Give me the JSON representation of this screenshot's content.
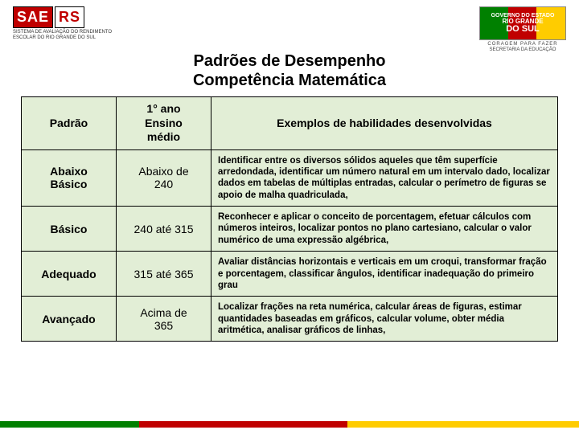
{
  "header": {
    "logo_prefix": "SAE",
    "logo_suffix": "RS",
    "logo_subtitle": "SISTEMA DE AVALIAÇÃO DO RENDIMENTO ESCOLAR DO RIO GRANDE DO SUL",
    "gov_line1": "GOVERNO DO ESTADO",
    "gov_line2": "RIO GRANDE",
    "gov_line3": "DO SUL",
    "gov_motto": "CORAGEM PARA FAZER",
    "gov_dept": "SECRETARIA DA EDUCAÇÃO"
  },
  "title": {
    "line1": "Padrões de Desempenho",
    "line2": "Competência Matemática"
  },
  "table": {
    "columns": {
      "padrao": "Padrão",
      "ano_l1": "1° ano",
      "ano_l2": "Ensino",
      "ano_l3": "médio",
      "exemplos": "Exemplos de habilidades desenvolvidas"
    },
    "rows": [
      {
        "padrao_l1": "Abaixo",
        "padrao_l2": "Básico",
        "range_l1": "Abaixo de",
        "range_l2": "240",
        "desc": "Identificar entre os diversos sólidos aqueles que têm superfície arredondada, identificar um número natural em um intervalo dado, localizar dados em tabelas de múltiplas entradas, calcular o perímetro de figuras se apoio de malha quadriculada,"
      },
      {
        "padrao_l1": "Básico",
        "padrao_l2": "",
        "range_l1": "240 até 315",
        "range_l2": "",
        "desc": "Reconhecer e aplicar o conceito de porcentagem, efetuar cálculos com números inteiros, localizar pontos no plano cartesiano, calcular o valor numérico de uma expressão algébrica,"
      },
      {
        "padrao_l1": "Adequado",
        "padrao_l2": "",
        "range_l1": "315 até 365",
        "range_l2": "",
        "desc": "Avaliar distâncias horizontais e verticais em um croqui, transformar fração e porcentagem, classificar ângulos, identificar inadequação do primeiro grau"
      },
      {
        "padrao_l1": "Avançado",
        "padrao_l2": "",
        "range_l1": "Acima de",
        "range_l2": "365",
        "desc": "Localizar frações na reta numérica, calcular áreas de figuras, estimar quantidades baseadas em gráficos, calcular volume, obter média aritmética, analisar gráficos de linhas,"
      }
    ]
  },
  "colors": {
    "cell_bg": "#e2eed6",
    "border": "#000000",
    "brand_red": "#c00000",
    "brand_green": "#008000",
    "brand_yellow": "#ffcc00"
  }
}
